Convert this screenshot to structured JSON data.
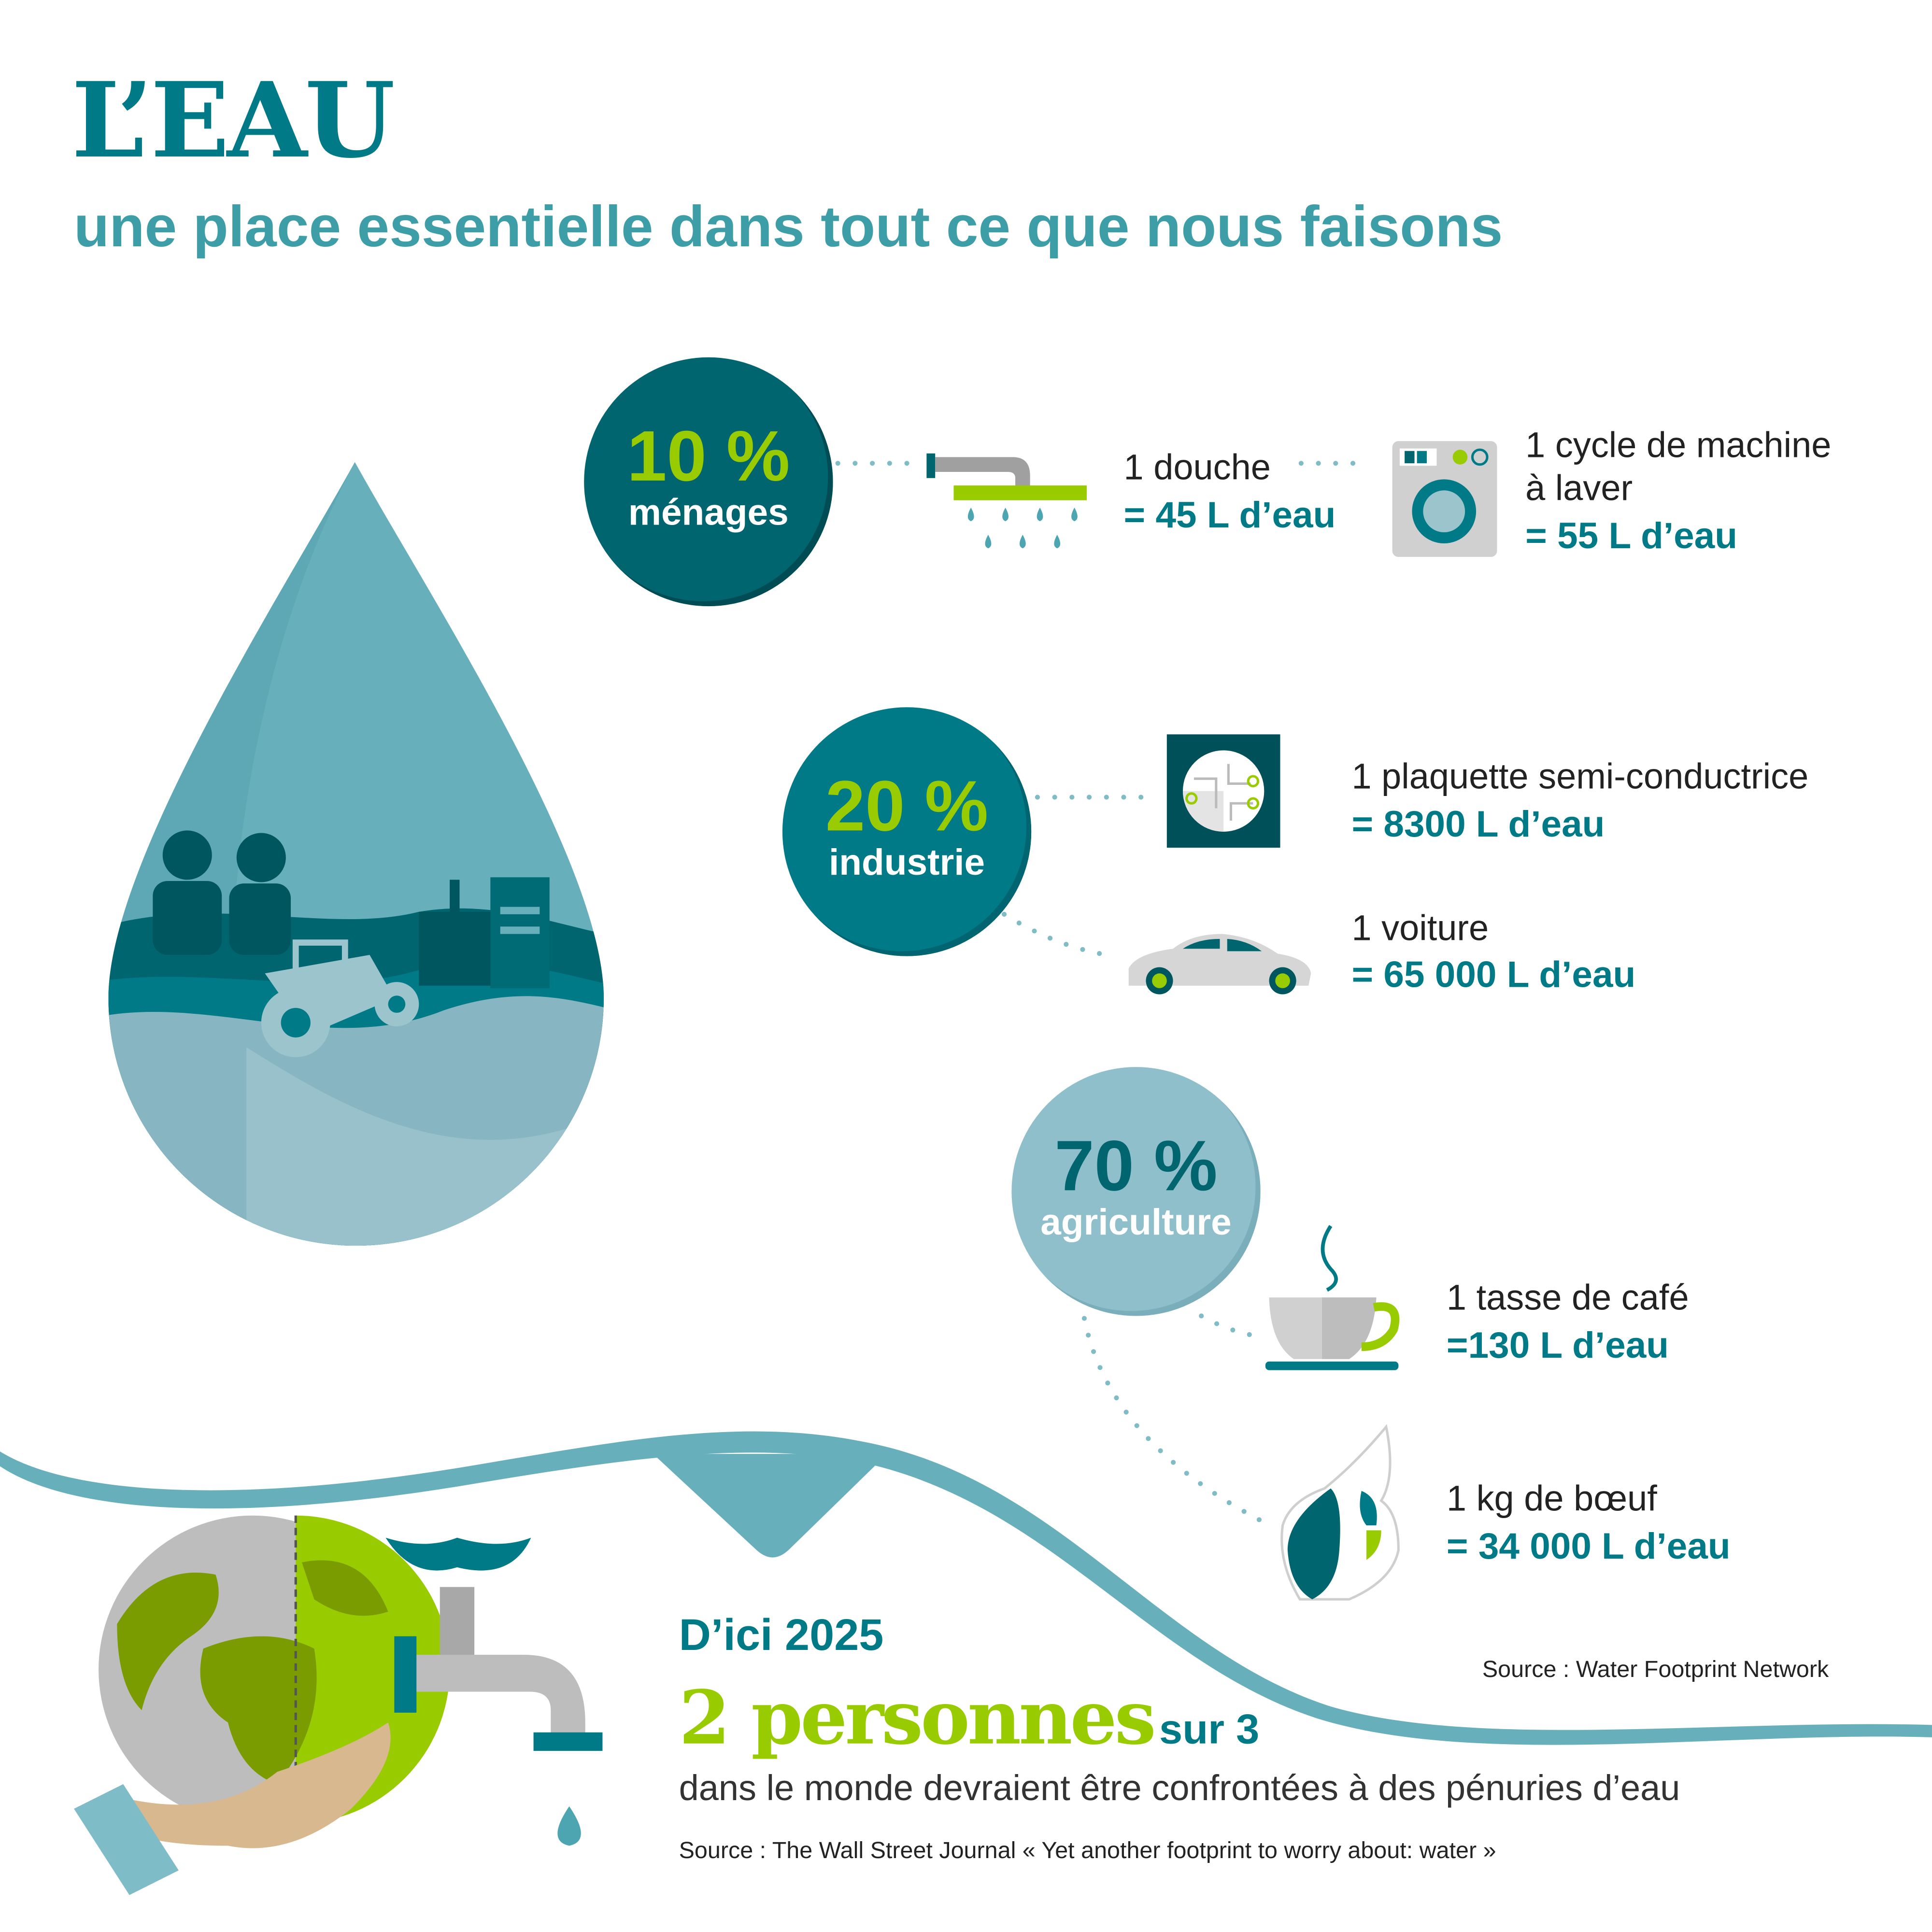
{
  "header": {
    "title": "L’EAU",
    "subtitle": "une place essentielle dans tout ce que nous faisons"
  },
  "sectors": [
    {
      "percent": "10 %",
      "name": "ménages",
      "items": [
        {
          "label": "1 douche",
          "value": "= 45 L d’eau",
          "icon": "shower-icon"
        },
        {
          "label_line1": "1 cycle de machine",
          "label_line2": "à laver",
          "value": "= 55 L d’eau",
          "icon": "washing-machine-icon"
        }
      ]
    },
    {
      "percent": "20 %",
      "name": "industrie",
      "items": [
        {
          "label": "1 plaquette semi-conductrice",
          "value": "= 8300 L d’eau",
          "icon": "semiconductor-wafer-icon"
        },
        {
          "label": "1 voiture",
          "value": "= 65 000 L d’eau",
          "icon": "car-icon"
        }
      ]
    },
    {
      "percent": "70 %",
      "name": "agriculture",
      "items": [
        {
          "label": "1 tasse de café",
          "value": "=130 L d’eau",
          "icon": "coffee-cup-icon"
        },
        {
          "label": "1 kg de bœuf",
          "value": "= 34 000 L d’eau",
          "icon": "beef-icon"
        }
      ]
    }
  ],
  "source_top": "Source : Water Footprint Network",
  "forecast": {
    "year": "D’ici 2025",
    "big": "2 personnes",
    "ratio": "sur 3",
    "text": "dans le monde devraient être confrontées à des pénuries d’eau",
    "source": "Source : The Wall Street Journal « Yet another footprint to worry about: water »"
  },
  "colors": {
    "dark_teal": "#00656f",
    "teal": "#007a87",
    "light_teal": "#67b0bb",
    "green": "#99cc00",
    "agri_circle": "#8fbfcb"
  }
}
